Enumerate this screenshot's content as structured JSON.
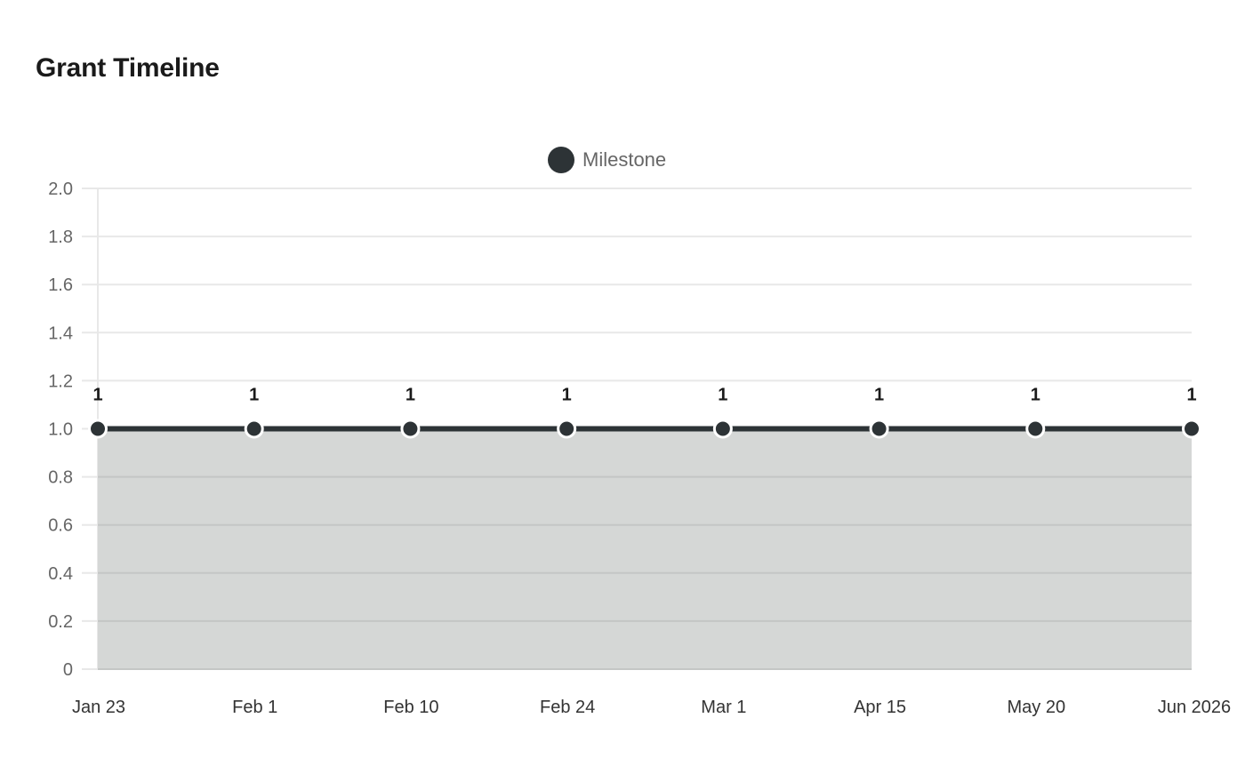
{
  "header": {
    "title": "Grant Timeline"
  },
  "legend": {
    "label": "Milestone",
    "color": "#2d3336"
  },
  "colors": {
    "line": "#2d3336",
    "fill": "#d5d7d6",
    "grid": "#e8e8e8",
    "grid_in_fill": "#c4c6c5"
  },
  "chart_data": {
    "type": "area",
    "title": "Grant Timeline",
    "xlabel": "",
    "ylabel": "",
    "categories": [
      "Jan 23",
      "Feb 1",
      "Feb 10",
      "Feb 24",
      "Mar 1",
      "Apr 15",
      "May 20",
      "Jun 2026"
    ],
    "series": [
      {
        "name": "Milestone",
        "values": [
          1,
          1,
          1,
          1,
          1,
          1,
          1,
          1
        ],
        "color": "#2d3336"
      }
    ],
    "data_labels": [
      "1",
      "1",
      "1",
      "1",
      "1",
      "1",
      "1",
      "1"
    ],
    "ylim": [
      0,
      2.0
    ],
    "yticks": [
      "0",
      "0.2",
      "0.4",
      "0.6",
      "0.8",
      "1.0",
      "1.2",
      "1.4",
      "1.6",
      "1.8",
      "2.0"
    ],
    "grid": true,
    "legend_position": "top"
  }
}
